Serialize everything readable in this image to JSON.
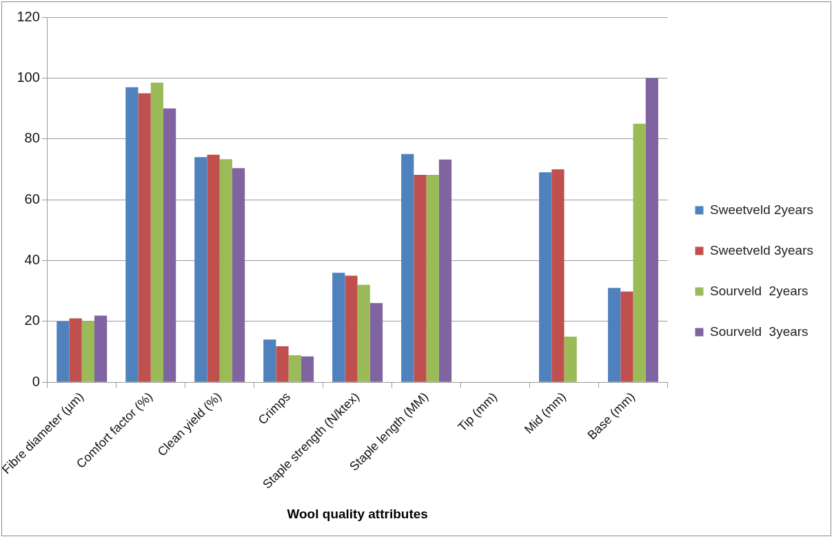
{
  "chart_data": {
    "type": "bar",
    "xlabel": "Wool quality attributes",
    "categories": [
      "Fibre diameter (µm)",
      "Comfort factor (%)",
      "Clean yield (%)",
      "Crimps",
      "Staple strength (N/ktex)",
      "Staple length (MM)",
      "Tip (mm)",
      "Mid (mm)",
      "Base (mm)"
    ],
    "series": [
      {
        "name": "Sweetveld 2years",
        "color": "#4f81bd",
        "values": [
          20,
          97,
          74,
          14,
          36,
          75,
          null,
          69,
          31
        ]
      },
      {
        "name": "Sweetveld 3years",
        "color": "#c0504d",
        "values": [
          21,
          95,
          74.8,
          11.8,
          35,
          68.2,
          null,
          70,
          29.8
        ]
      },
      {
        "name": "Sourveld  2years",
        "color": "#9bbb59",
        "values": [
          20,
          98.5,
          73.3,
          8.9,
          32,
          68.2,
          null,
          15,
          85
        ]
      },
      {
        "name": "Sourveld  3years",
        "color": "#8064a2",
        "values": [
          21.9,
          90,
          70.4,
          8.5,
          26,
          73.2,
          null,
          null,
          100
        ]
      }
    ],
    "ylim": [
      0,
      120
    ],
    "yticks": [
      0,
      20,
      40,
      60,
      80,
      100,
      120
    ],
    "grid": "y",
    "legend": "right"
  }
}
